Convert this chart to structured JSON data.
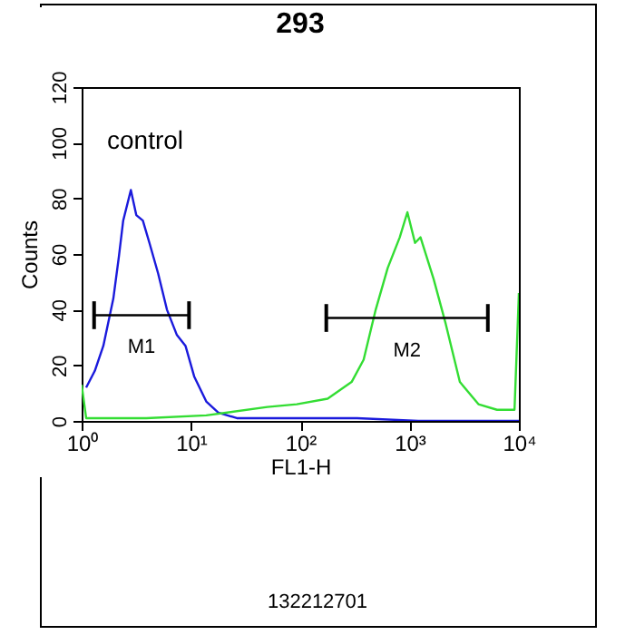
{
  "chart_data": {
    "type": "line",
    "title": "293",
    "xlabel": "FL1-H",
    "ylabel": "Counts",
    "log": "x",
    "xlim": [
      1,
      10000
    ],
    "ylim": [
      0,
      120
    ],
    "xticks": [
      {
        "value": 1,
        "label": "10⁰"
      },
      {
        "value": 10,
        "label": "10¹"
      },
      {
        "value": 100,
        "label": "10²"
      },
      {
        "value": 1000,
        "label": "10³"
      },
      {
        "value": 10000,
        "label": "10⁴"
      }
    ],
    "yticks": [
      0,
      20,
      40,
      60,
      80,
      100,
      120
    ],
    "series": [
      {
        "color": "#1a1adc",
        "x": [
          1.1,
          1.32,
          1.58,
          1.95,
          2.19,
          2.4,
          2.82,
          3.16,
          3.63,
          4.17,
          5.01,
          6.03,
          7.41,
          8.91,
          10.7,
          13.8,
          17.8,
          26.3,
          93,
          331,
          1202,
          10000
        ],
        "values": [
          12,
          18,
          27,
          44,
          59,
          72,
          83,
          74,
          72,
          64,
          53,
          40,
          31,
          27,
          16,
          7,
          3,
          1,
          1,
          1,
          0,
          0
        ]
      },
      {
        "color": "#33dd33",
        "x": [
          1,
          1.1,
          3.9,
          13.8,
          50,
          93,
          178,
          295,
          380,
          490,
          631,
          813,
          955,
          1122,
          1259,
          1660,
          2138,
          2884,
          4266,
          6310,
          9120,
          10000
        ],
        "values": [
          13,
          1,
          1,
          2,
          5,
          6,
          8,
          14,
          22,
          40,
          55,
          66,
          75,
          64,
          66,
          51,
          35,
          14,
          6,
          4,
          4,
          46
        ]
      },
      {
        "name": "M1",
        "color": "#000000",
        "x": [
          1.3,
          9.6
        ],
        "values": [
          38,
          38
        ],
        "errors": [
          5,
          5
        ]
      },
      {
        "name": "M2",
        "color": "#000000",
        "x": [
          173,
          5200
        ],
        "values": [
          37,
          37
        ],
        "errors": [
          5,
          5
        ]
      }
    ],
    "annotations": [
      "control",
      "132212701"
    ]
  }
}
